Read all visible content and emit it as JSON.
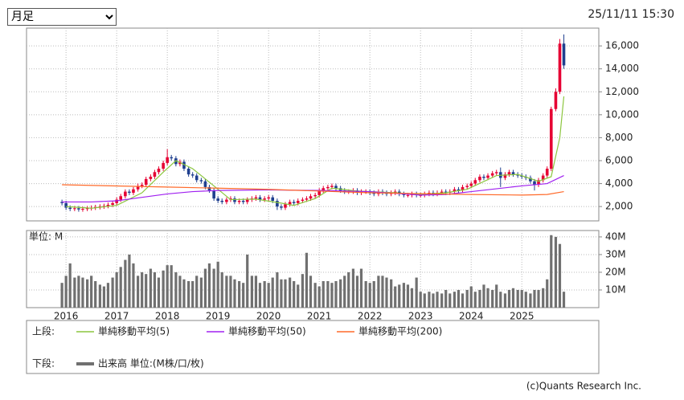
{
  "period": "月足",
  "timestamp": "25/11/11 15:30",
  "copyright": "(c)Quants Research Inc.",
  "chart_data": [
    {
      "type": "candlestick",
      "legend_title": "上段:",
      "x": [
        2015.92,
        2016.0,
        2016.08,
        2016.17,
        2016.25,
        2016.33,
        2016.42,
        2016.5,
        2016.58,
        2016.67,
        2016.75,
        2016.83,
        2016.92,
        2017.0,
        2017.08,
        2017.17,
        2017.25,
        2017.33,
        2017.42,
        2017.5,
        2017.58,
        2017.67,
        2017.75,
        2017.83,
        2017.92,
        2018.0,
        2018.08,
        2018.17,
        2018.25,
        2018.33,
        2018.42,
        2018.5,
        2018.58,
        2018.67,
        2018.75,
        2018.83,
        2018.92,
        2019.0,
        2019.08,
        2019.17,
        2019.25,
        2019.33,
        2019.42,
        2019.5,
        2019.58,
        2019.67,
        2019.75,
        2019.83,
        2019.92,
        2020.0,
        2020.08,
        2020.17,
        2020.25,
        2020.33,
        2020.42,
        2020.5,
        2020.58,
        2020.67,
        2020.75,
        2020.83,
        2020.92,
        2021.0,
        2021.08,
        2021.17,
        2021.25,
        2021.33,
        2021.42,
        2021.5,
        2021.58,
        2021.67,
        2021.75,
        2021.83,
        2021.92,
        2022.0,
        2022.08,
        2022.17,
        2022.25,
        2022.33,
        2022.42,
        2022.5,
        2022.58,
        2022.67,
        2022.75,
        2022.83,
        2022.92,
        2023.0,
        2023.08,
        2023.17,
        2023.25,
        2023.33,
        2023.42,
        2023.5,
        2023.58,
        2023.67,
        2023.75,
        2023.83,
        2023.92,
        2024.0,
        2024.08,
        2024.17,
        2024.25,
        2024.33,
        2024.42,
        2024.5,
        2024.58,
        2024.67,
        2024.75,
        2024.83,
        2024.92,
        2025.0,
        2025.08,
        2025.17,
        2025.25,
        2025.33,
        2025.42,
        2025.5,
        2025.58,
        2025.67,
        2025.75,
        2025.83
      ],
      "open": [
        2400,
        2300,
        1900,
        1800,
        1850,
        1750,
        1800,
        1850,
        1900,
        1950,
        2000,
        2050,
        2150,
        2300,
        2600,
        2900,
        3300,
        3200,
        3500,
        3800,
        3900,
        4400,
        4600,
        5000,
        5300,
        5800,
        6300,
        6200,
        5700,
        5900,
        5300,
        4800,
        4700,
        4300,
        4200,
        3700,
        3400,
        2700,
        2500,
        2400,
        2600,
        2700,
        2400,
        2500,
        2400,
        2600,
        2700,
        2800,
        2600,
        2700,
        2800,
        2500,
        2000,
        1900,
        2200,
        2400,
        2300,
        2500,
        2600,
        2700,
        2900,
        3000,
        3400,
        3600,
        3700,
        3800,
        3600,
        3400,
        3300,
        3300,
        3400,
        3200,
        3300,
        3300,
        3200,
        3100,
        3300,
        3200,
        3100,
        3200,
        3300,
        3100,
        3000,
        3000,
        3100,
        3000,
        3000,
        3100,
        3200,
        3100,
        3200,
        3300,
        3200,
        3300,
        3500,
        3400,
        3700,
        3800,
        4000,
        4300,
        4600,
        4500,
        4700,
        4900,
        5000,
        4500,
        4800,
        5000,
        4800,
        4700,
        4600,
        4500,
        4200,
        3900,
        4300,
        4700,
        5300,
        10500,
        12000,
        16200
      ],
      "high": [
        2600,
        2500,
        2100,
        2050,
        2050,
        2000,
        2050,
        2100,
        2150,
        2200,
        2250,
        2350,
        2500,
        2800,
        3100,
        3500,
        3500,
        3700,
        4000,
        4100,
        4600,
        4800,
        5200,
        5500,
        6000,
        7000,
        6500,
        6400,
        6100,
        6100,
        5500,
        5000,
        4900,
        4500,
        4400,
        3900,
        3600,
        2900,
        2700,
        2800,
        2900,
        2900,
        2700,
        2700,
        2800,
        2900,
        3000,
        3000,
        2900,
        3000,
        3000,
        2700,
        2200,
        2400,
        2600,
        2600,
        2700,
        2800,
        2900,
        3100,
        3200,
        3600,
        3800,
        3900,
        4000,
        4000,
        3800,
        3600,
        3500,
        3600,
        3600,
        3500,
        3500,
        3500,
        3400,
        3500,
        3500,
        3400,
        3400,
        3500,
        3500,
        3300,
        3200,
        3300,
        3300,
        3200,
        3300,
        3400,
        3400,
        3400,
        3500,
        3500,
        3500,
        3700,
        3700,
        3900,
        4000,
        4200,
        4500,
        4800,
        4800,
        4900,
        5100,
        5200,
        5400,
        5000,
        5200,
        5200,
        5000,
        4900,
        4800,
        4700,
        4400,
        4500,
        4900,
        5500,
        10700,
        12300,
        16600,
        17000
      ],
      "low": [
        2100,
        1700,
        1600,
        1600,
        1550,
        1550,
        1600,
        1650,
        1700,
        1750,
        1800,
        1850,
        1950,
        2100,
        2400,
        2700,
        3000,
        3000,
        3300,
        3600,
        3700,
        4200,
        4400,
        4800,
        5100,
        5600,
        6000,
        5500,
        5500,
        5100,
        4600,
        4500,
        4100,
        4000,
        3500,
        3200,
        2500,
        2300,
        2200,
        2200,
        2400,
        2200,
        2200,
        2200,
        2200,
        2400,
        2500,
        2400,
        2400,
        2500,
        2300,
        1700,
        1700,
        1700,
        2000,
        2100,
        2100,
        2300,
        2400,
        2500,
        2700,
        2800,
        3200,
        3400,
        3500,
        3400,
        3200,
        3100,
        3100,
        3100,
        3000,
        3000,
        3100,
        3000,
        2900,
        2900,
        3000,
        2900,
        2900,
        3000,
        2900,
        2800,
        2800,
        2800,
        2800,
        2800,
        2800,
        2900,
        2900,
        2900,
        3000,
        3000,
        3000,
        3100,
        3200,
        3200,
        3500,
        3600,
        3800,
        4100,
        4300,
        4300,
        4500,
        4700,
        3700,
        4300,
        4600,
        4600,
        4500,
        4400,
        4300,
        4000,
        3400,
        3700,
        4100,
        4500,
        5100,
        10300,
        11800,
        14000
      ],
      "close": [
        2300,
        1900,
        1800,
        1850,
        1750,
        1800,
        1850,
        1900,
        1950,
        2000,
        2050,
        2150,
        2300,
        2600,
        2900,
        3300,
        3200,
        3500,
        3800,
        3900,
        4400,
        4600,
        5000,
        5300,
        5800,
        6300,
        6200,
        5700,
        5900,
        5300,
        4800,
        4700,
        4300,
        4200,
        3700,
        3400,
        2700,
        2500,
        2400,
        2600,
        2700,
        2400,
        2500,
        2400,
        2600,
        2700,
        2800,
        2600,
        2700,
        2800,
        2500,
        2000,
        1900,
        2200,
        2400,
        2300,
        2500,
        2600,
        2700,
        2900,
        3000,
        3400,
        3600,
        3700,
        3800,
        3600,
        3400,
        3300,
        3300,
        3400,
        3200,
        3300,
        3300,
        3200,
        3100,
        3300,
        3200,
        3100,
        3200,
        3300,
        3100,
        3000,
        3000,
        3100,
        3000,
        3000,
        3100,
        3200,
        3100,
        3200,
        3300,
        3200,
        3300,
        3500,
        3400,
        3700,
        3800,
        4000,
        4300,
        4600,
        4500,
        4700,
        4900,
        5000,
        4500,
        4800,
        5000,
        4800,
        4700,
        4600,
        4500,
        4200,
        3900,
        4300,
        4700,
        5300,
        10500,
        12000,
        16200,
        14300
      ],
      "up_color": "#e60033",
      "down_color": "#1f3f8f",
      "series": [
        {
          "name": "単純移動平均(5)",
          "color": "#8cc63f",
          "x": [
            2016.0,
            2016.5,
            2017.0,
            2017.5,
            2017.92,
            2018.17,
            2018.5,
            2018.92,
            2019.25,
            2019.75,
            2020.25,
            2020.5,
            2020.92,
            2021.25,
            2021.75,
            2022.5,
            2023.0,
            2023.5,
            2023.92,
            2024.5,
            2024.92,
            2025.33,
            2025.58,
            2025.75,
            2025.83
          ],
          "values": [
            2000,
            1850,
            2100,
            3200,
            5000,
            6000,
            5300,
            3800,
            2600,
            2650,
            2300,
            2100,
            2700,
            3600,
            3350,
            3200,
            3050,
            3200,
            3500,
            4700,
            4800,
            4200,
            4600,
            8000,
            11600
          ]
        },
        {
          "name": "単純移動平均(50)",
          "color": "#a020f0",
          "x": [
            2015.92,
            2016.5,
            2017.0,
            2017.5,
            2018.0,
            2018.5,
            2019.0,
            2020.0,
            2021.0,
            2022.0,
            2023.0,
            2023.5,
            2024.0,
            2025.0,
            2025.5,
            2025.83
          ],
          "values": [
            2400,
            2400,
            2500,
            2800,
            3100,
            3300,
            3400,
            3450,
            3400,
            3300,
            3000,
            3050,
            3300,
            3800,
            4000,
            4700
          ]
        },
        {
          "name": "単純移動平均(200)",
          "color": "#ff6a2a",
          "x": [
            2015.92,
            2018.0,
            2020.0,
            2022.0,
            2024.0,
            2025.0,
            2025.5,
            2025.83
          ],
          "values": [
            3900,
            3700,
            3500,
            3200,
            3050,
            3000,
            3050,
            3300
          ]
        }
      ],
      "xlim": [
        2015.22,
        2026.52
      ],
      "xticks": [
        2016,
        2017,
        2018,
        2019,
        2020,
        2021,
        2022,
        2023,
        2024,
        2025
      ],
      "ylim": [
        750,
        17550
      ],
      "yticks": [
        {
          "value": 2000,
          "label": "2,000"
        },
        {
          "value": 4000,
          "label": "4,000"
        },
        {
          "value": 6000,
          "label": "6,000"
        },
        {
          "value": 8000,
          "label": "8,000"
        },
        {
          "value": 10000,
          "label": "10,000"
        },
        {
          "value": 12000,
          "label": "12,000"
        },
        {
          "value": 14000,
          "label": "14,000"
        },
        {
          "value": 16000,
          "label": "16,000"
        }
      ],
      "grid": true
    },
    {
      "type": "bar",
      "unit_label": "単位: M",
      "legend_title": "下段:",
      "name": "出来高 単位:(M株/口/枚)",
      "color": "#707070",
      "values": [
        14,
        18,
        25,
        17,
        18,
        17,
        16,
        18,
        15,
        13,
        12,
        14,
        17,
        20,
        23,
        27,
        30,
        25,
        18,
        20,
        19,
        22,
        20,
        17,
        21,
        24,
        24,
        20,
        18,
        16,
        15,
        15,
        18,
        17,
        22,
        25,
        22,
        26,
        20,
        18,
        18,
        16,
        15,
        14,
        30,
        18,
        18,
        14,
        15,
        14,
        17,
        20,
        16,
        16,
        17,
        15,
        13,
        19,
        31,
        18,
        14,
        12,
        15,
        15,
        14,
        15,
        16,
        18,
        20,
        22,
        18,
        22,
        15,
        14,
        15,
        18,
        18,
        17,
        16,
        12,
        13,
        14,
        13,
        11,
        17,
        9,
        8,
        9,
        8,
        9,
        8,
        10,
        8,
        9,
        10,
        8,
        10,
        12,
        9,
        10,
        13,
        11,
        10,
        13,
        9,
        8,
        10,
        11,
        10,
        10,
        9,
        8,
        10,
        10,
        11,
        16,
        41,
        40,
        36,
        9
      ],
      "xlim": [
        2015.22,
        2026.52
      ],
      "xticks": [
        2016,
        2017,
        2018,
        2019,
        2020,
        2021,
        2022,
        2023,
        2024,
        2025
      ],
      "ylim": [
        0,
        43.6
      ],
      "yticks": [
        {
          "value": 10,
          "label": "10M"
        },
        {
          "value": 20,
          "label": "20M"
        },
        {
          "value": 30,
          "label": "30M"
        },
        {
          "value": 40,
          "label": "40M"
        }
      ],
      "grid": true
    }
  ]
}
